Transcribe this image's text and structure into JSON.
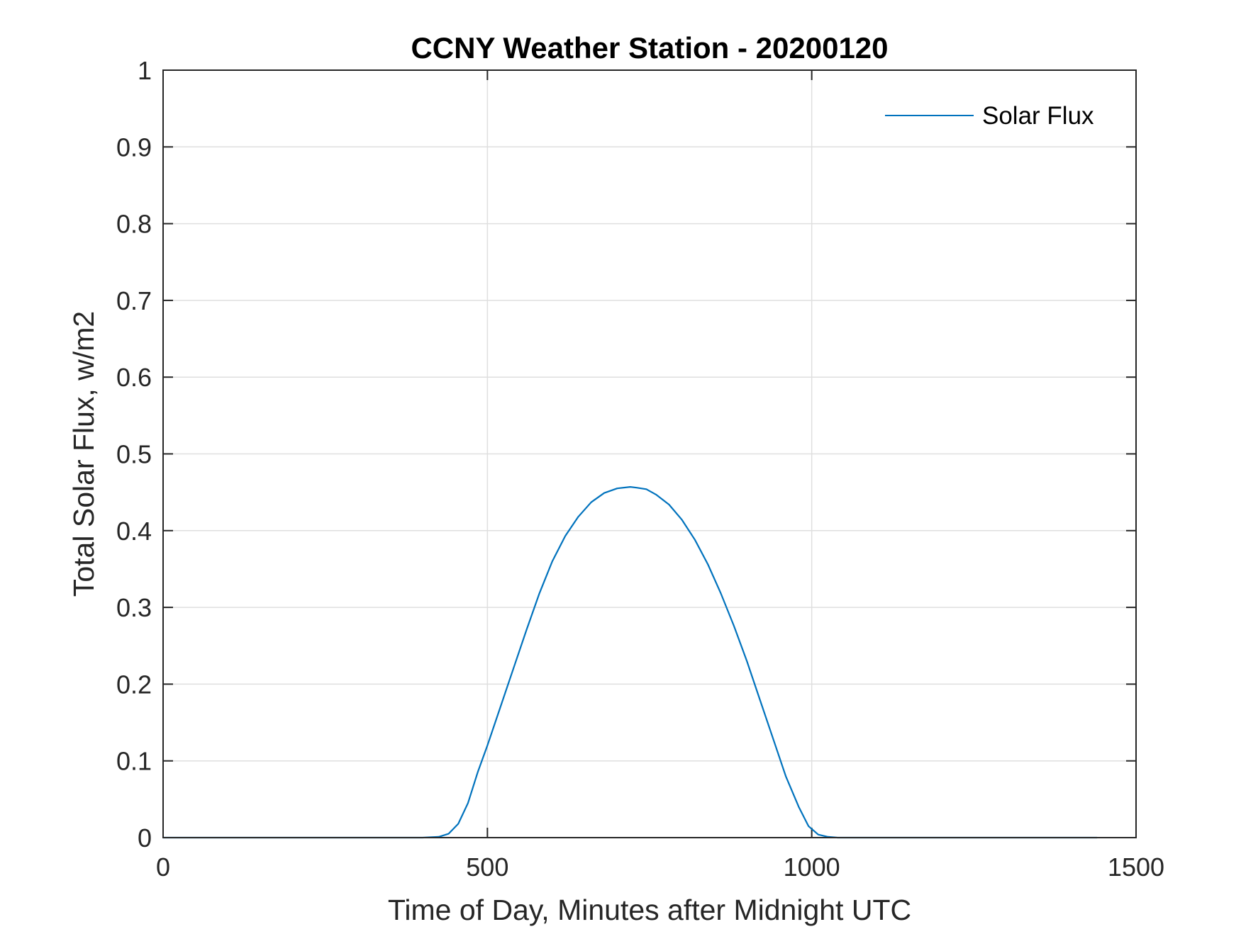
{
  "chart_data": {
    "type": "line",
    "title": "CCNY Weather Station - 20200120",
    "xlabel": "Time of Day, Minutes after Midnight UTC",
    "ylabel": "Total Solar Flux, w/m2",
    "xlim": [
      0,
      1500
    ],
    "ylim": [
      0,
      1
    ],
    "xticks": [
      0,
      500,
      1000,
      1500
    ],
    "xtick_labels": [
      "0",
      "500",
      "1000",
      "1500"
    ],
    "yticks": [
      0,
      0.1,
      0.2,
      0.3,
      0.4,
      0.5,
      0.6,
      0.7,
      0.8,
      0.9,
      1
    ],
    "ytick_labels": [
      "0",
      "0.1",
      "0.2",
      "0.3",
      "0.4",
      "0.5",
      "0.6",
      "0.7",
      "0.8",
      "0.9",
      "1"
    ],
    "grid": true,
    "legend_position": "top-right",
    "series": [
      {
        "name": "Solar Flux",
        "color": "#0072BD",
        "x": [
          0,
          100,
          200,
          300,
          400,
          425,
          440,
          455,
          470,
          485,
          500,
          520,
          540,
          560,
          580,
          600,
          620,
          640,
          660,
          680,
          700,
          720,
          730,
          745,
          760,
          780,
          800,
          820,
          840,
          860,
          880,
          900,
          920,
          940,
          960,
          980,
          995,
          1010,
          1025,
          1040,
          1060,
          1100,
          1200,
          1300,
          1440
        ],
        "values": [
          0,
          0,
          0,
          0,
          0,
          0.001,
          0.005,
          0.018,
          0.045,
          0.085,
          0.12,
          0.17,
          0.22,
          0.27,
          0.318,
          0.36,
          0.393,
          0.418,
          0.437,
          0.449,
          0.455,
          0.457,
          0.456,
          0.454,
          0.447,
          0.434,
          0.414,
          0.388,
          0.356,
          0.318,
          0.276,
          0.23,
          0.18,
          0.13,
          0.08,
          0.04,
          0.015,
          0.004,
          0.001,
          0,
          0,
          0,
          0,
          0,
          0
        ]
      }
    ]
  }
}
